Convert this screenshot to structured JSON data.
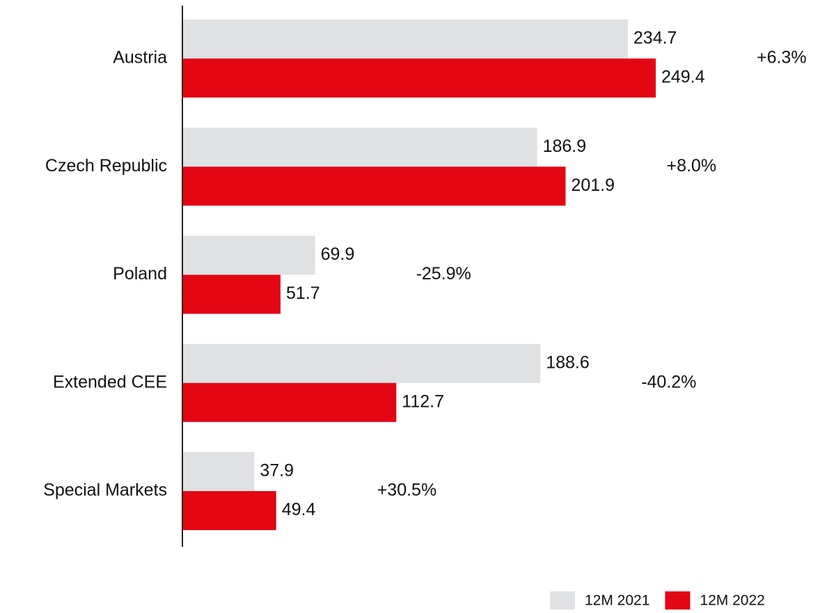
{
  "chart_data": {
    "type": "hbar",
    "categories": [
      "Austria",
      "Czech Republic",
      "Poland",
      "Extended CEE",
      "Special Markets"
    ],
    "series": [
      {
        "name": "12M 2021",
        "color": "#dfe1e3",
        "values": [
          234.7,
          186.9,
          69.9,
          188.6,
          37.9
        ]
      },
      {
        "name": "12M 2022",
        "color": "#e30613",
        "values": [
          249.4,
          201.9,
          51.7,
          112.7,
          49.4
        ]
      }
    ],
    "annotations": [
      "+6.3%",
      "+8.0%",
      "-25.9%",
      "-40.2%",
      "+30.5%"
    ],
    "xlim": [
      0,
      340
    ],
    "legend": "bottom-right"
  }
}
